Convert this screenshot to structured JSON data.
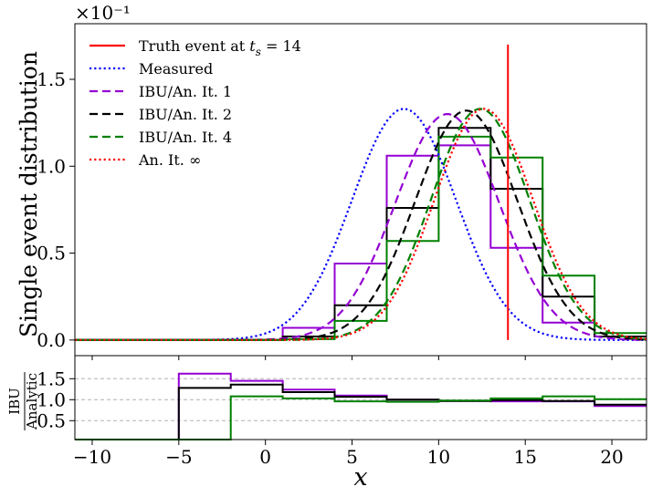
{
  "chart_data": [
    {
      "type": "line",
      "ylabel": "Single event distribution",
      "y_multiplier": "×10⁻¹",
      "xlim": [
        -11,
        22
      ],
      "ylim": [
        -0.09,
        1.82
      ],
      "y_ticks": [
        0.0,
        0.5,
        1.0,
        1.5
      ],
      "y_tick_labels": [
        "0.0",
        "0.5",
        "1.0",
        "1.5"
      ],
      "grid": false,
      "legend_position": "top-left",
      "truth": {
        "name": "Truth event at t_s = 14",
        "x": 14,
        "ymax": 1.7,
        "color": "#ff0000"
      },
      "curves": [
        {
          "name": "Measured",
          "style": "dotted",
          "color": "#0000ff",
          "mu": 8,
          "sigma": 3,
          "amp": 1.33
        },
        {
          "name": "IBU/An. It. 1",
          "style": "dashed",
          "color": "#9400d3",
          "mu": 10.5,
          "sigma": 3,
          "amp": 1.3
        },
        {
          "name": "IBU/An. It. 2",
          "style": "dashed",
          "color": "#000000",
          "mu": 11.6,
          "sigma": 2.95,
          "amp": 1.32
        },
        {
          "name": "IBU/An. It. 4",
          "style": "dashed",
          "color": "#008000",
          "mu": 12.4,
          "sigma": 2.85,
          "amp": 1.33
        },
        {
          "name": "An. It. ∞",
          "style": "dotted",
          "color": "#ff0000",
          "mu": 12.6,
          "sigma": 2.85,
          "amp": 1.33
        }
      ],
      "histograms": [
        {
          "name": "IBU/An. It. 1",
          "color": "#9400d3",
          "edges": [
            -11,
            -5,
            -2,
            1,
            4,
            7,
            10,
            13,
            16,
            19,
            22
          ],
          "values": [
            0,
            0,
            0,
            0.07,
            0.44,
            1.06,
            1.12,
            0.53,
            0.1,
            0.02
          ]
        },
        {
          "name": "IBU/An. It. 2",
          "color": "#000000",
          "edges": [
            -11,
            -5,
            -2,
            1,
            4,
            7,
            10,
            13,
            16,
            19,
            22
          ],
          "values": [
            0,
            0,
            0,
            0.02,
            0.2,
            0.76,
            1.22,
            0.87,
            0.25,
            0.02
          ]
        },
        {
          "name": "IBU/An. It. 4",
          "color": "#008000",
          "edges": [
            -11,
            -5,
            -2,
            1,
            4,
            7,
            10,
            13,
            16,
            19,
            22
          ],
          "values": [
            0,
            0,
            0,
            0.005,
            0.11,
            0.57,
            1.17,
            1.05,
            0.37,
            0.04
          ]
        }
      ],
      "legend": [
        {
          "label": "Truth event at t",
          "sub": "s",
          "tail": " = 14",
          "style": "solid",
          "color": "#ff0000"
        },
        {
          "label": "Measured",
          "sub": "",
          "tail": "",
          "style": "dotted",
          "color": "#0000ff"
        },
        {
          "label": "IBU/An. It. 1",
          "sub": "",
          "tail": "",
          "style": "dashed",
          "color": "#9400d3"
        },
        {
          "label": "IBU/An. It. 2",
          "sub": "",
          "tail": "",
          "style": "dashed",
          "color": "#000000"
        },
        {
          "label": "IBU/An. It. 4",
          "sub": "",
          "tail": "",
          "style": "dashed",
          "color": "#008000"
        },
        {
          "label": "An. It. ∞",
          "sub": "",
          "tail": "",
          "style": "dotted",
          "color": "#ff0000"
        }
      ]
    },
    {
      "type": "line",
      "xlabel": "x",
      "ylabel_numerator": "IBU",
      "ylabel_denominator": "Analytic",
      "xlim": [
        -11,
        22
      ],
      "ylim": [
        0.05,
        2.05
      ],
      "x_ticks": [
        -10,
        -5,
        0,
        5,
        10,
        15,
        20
      ],
      "x_tick_labels": [
        "−10",
        "−5",
        "0",
        "5",
        "10",
        "15",
        "20"
      ],
      "y_ticks": [
        0.5,
        1.0,
        1.5
      ],
      "y_tick_labels": [
        "0.5",
        "1.0",
        "1.5"
      ],
      "grid": true,
      "grid_style": "dashed horizontal",
      "series": [
        {
          "name": "IBU/An. It. 1",
          "color": "#9400d3",
          "edges": [
            -11,
            -5,
            -2,
            1,
            4,
            7,
            10,
            13,
            16,
            19,
            22
          ],
          "values": [
            0,
            1.62,
            1.45,
            1.24,
            1.1,
            1.0,
            0.97,
            0.96,
            0.96,
            0.85
          ]
        },
        {
          "name": "IBU/An. It. 2",
          "color": "#000000",
          "edges": [
            -11,
            -5,
            -2,
            1,
            4,
            7,
            10,
            13,
            16,
            19,
            22
          ],
          "values": [
            0,
            1.28,
            1.36,
            1.18,
            1.07,
            1.0,
            0.97,
            0.99,
            0.97,
            0.88
          ]
        },
        {
          "name": "IBU/An. It. 4",
          "color": "#008000",
          "edges": [
            -11,
            -5,
            -2,
            1,
            4,
            7,
            10,
            13,
            16,
            19,
            22
          ],
          "values": [
            0,
            0,
            1.08,
            1.03,
            0.96,
            0.95,
            0.98,
            1.03,
            1.08,
            1.01
          ]
        }
      ]
    }
  ]
}
